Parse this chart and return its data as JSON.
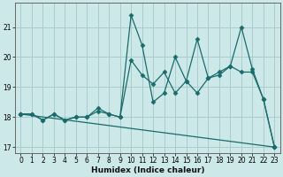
{
  "xlabel": "Humidex (Indice chaleur)",
  "bg_color": "#cce8e8",
  "grid_color": "#aacccc",
  "line_color": "#1a6b6b",
  "xlim": [
    -0.5,
    23.5
  ],
  "ylim": [
    16.8,
    21.8
  ],
  "xticks": [
    0,
    1,
    2,
    3,
    4,
    5,
    6,
    7,
    8,
    9,
    10,
    11,
    12,
    13,
    14,
    15,
    16,
    17,
    18,
    19,
    20,
    21,
    22,
    23
  ],
  "yticks": [
    17,
    18,
    19,
    20,
    21
  ],
  "line1_x": [
    0,
    1,
    2,
    3,
    4,
    5,
    6,
    7,
    8,
    9,
    10,
    11,
    12,
    13,
    14,
    15,
    16,
    17,
    18,
    19,
    20,
    21,
    22,
    23
  ],
  "line1_y": [
    18.1,
    18.1,
    17.9,
    18.1,
    17.9,
    18.0,
    18.0,
    18.2,
    18.1,
    18.0,
    21.4,
    20.4,
    18.5,
    18.8,
    20.0,
    19.2,
    20.6,
    19.3,
    19.4,
    19.7,
    21.0,
    19.6,
    18.6,
    17.0
  ],
  "line2_x": [
    0,
    1,
    2,
    3,
    4,
    5,
    6,
    7,
    8,
    9,
    10,
    11,
    12,
    13,
    14,
    15,
    16,
    17,
    18,
    19,
    20,
    21,
    22,
    23
  ],
  "line2_y": [
    18.1,
    18.1,
    17.9,
    18.1,
    17.9,
    18.0,
    18.0,
    18.3,
    18.1,
    18.0,
    19.9,
    19.4,
    19.1,
    19.5,
    18.8,
    19.2,
    18.8,
    19.3,
    19.5,
    19.7,
    19.5,
    19.5,
    18.6,
    17.0
  ],
  "line3_x": [
    0,
    23
  ],
  "line3_y": [
    18.1,
    17.0
  ]
}
